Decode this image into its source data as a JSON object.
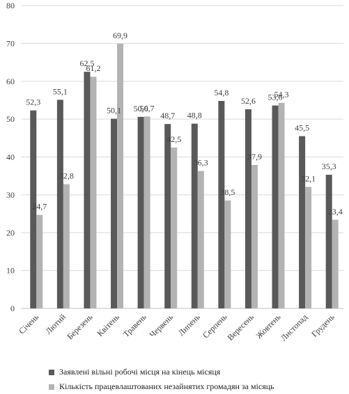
{
  "chart_data": {
    "type": "bar",
    "categories": [
      "Січень",
      "Лютий",
      "Березень",
      "Квітень",
      "Травень",
      "Червень",
      "Липень",
      "Серпень",
      "Вересень",
      "Жовтень",
      "Листопад",
      "Грудень"
    ],
    "series": [
      {
        "name": "Заявлені вільні робочі місця на кінець місяця",
        "color": "#595959",
        "values": [
          52.3,
          55.1,
          62.5,
          50.1,
          50.6,
          48.7,
          48.8,
          54.8,
          52.6,
          53.6,
          45.5,
          35.3
        ],
        "labels": [
          "52,3",
          "55,1",
          "62,5",
          "50,1",
          "50,6",
          "48,7",
          "48,8",
          "54,8",
          "52,6",
          "53,6",
          "45,5",
          "35,3"
        ]
      },
      {
        "name": "Кількість працевлаштованих незайнятих громадян за місяць",
        "color": "#b3b3b3",
        "values": [
          24.7,
          32.8,
          61.2,
          69.9,
          50.7,
          42.5,
          36.3,
          28.5,
          37.9,
          54.3,
          32.1,
          23.4
        ],
        "labels": [
          "24,7",
          "32,8",
          "61,2",
          "69,9",
          "50,7",
          "42,5",
          "36,3",
          "28,5",
          "37,9",
          "54,3",
          "32,1",
          "23,4"
        ]
      }
    ],
    "y_ticks": [
      "0",
      "10",
      "20",
      "30",
      "40",
      "50",
      "60",
      "70",
      "80"
    ],
    "ylim": [
      0,
      80
    ],
    "grid": true,
    "legend_position": "bottom"
  }
}
